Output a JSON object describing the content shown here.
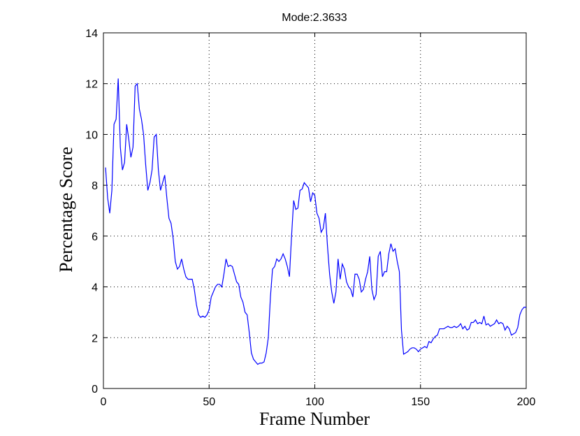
{
  "chart_data": {
    "type": "line",
    "title": "Mode:2.3633",
    "x_label": "Frame Number",
    "y_label": "Percentage Score",
    "x": [
      1,
      2,
      3,
      4,
      5,
      6,
      7,
      8,
      9,
      10,
      11,
      12,
      13,
      14,
      15,
      16,
      17,
      18,
      19,
      20,
      21,
      22,
      23,
      24,
      25,
      26,
      27,
      28,
      29,
      30,
      31,
      32,
      33,
      34,
      35,
      36,
      37,
      38,
      39,
      40,
      41,
      42,
      43,
      44,
      45,
      46,
      47,
      48,
      49,
      50,
      51,
      52,
      53,
      54,
      55,
      56,
      57,
      58,
      59,
      60,
      61,
      62,
      63,
      64,
      65,
      66,
      67,
      68,
      69,
      70,
      71,
      72,
      73,
      74,
      75,
      76,
      77,
      78,
      79,
      80,
      81,
      82,
      83,
      84,
      85,
      86,
      87,
      88,
      89,
      90,
      91,
      92,
      93,
      94,
      95,
      96,
      97,
      98,
      99,
      100,
      101,
      102,
      103,
      104,
      105,
      106,
      107,
      108,
      109,
      110,
      111,
      112,
      113,
      114,
      115,
      116,
      117,
      118,
      119,
      120,
      121,
      122,
      123,
      124,
      125,
      126,
      127,
      128,
      129,
      130,
      131,
      132,
      133,
      134,
      135,
      136,
      137,
      138,
      139,
      140,
      141,
      142,
      143,
      144,
      145,
      146,
      147,
      148,
      149,
      150,
      151,
      152,
      153,
      154,
      155,
      156,
      157,
      158,
      159,
      160,
      161,
      162,
      163,
      164,
      165,
      166,
      167,
      168,
      169,
      170,
      171,
      172,
      173,
      174,
      175,
      176,
      177,
      178,
      179,
      180,
      181,
      182,
      183,
      184,
      185,
      186,
      187,
      188,
      189,
      190,
      191,
      192,
      193,
      194,
      195,
      196,
      197,
      198,
      199,
      200
    ],
    "values": [
      8.7,
      7.5,
      6.9,
      7.8,
      10.4,
      10.6,
      12.2,
      9.5,
      8.6,
      8.9,
      10.4,
      9.8,
      9.1,
      9.5,
      11.9,
      12.0,
      11.0,
      10.6,
      10.0,
      8.8,
      7.8,
      8.1,
      8.6,
      9.9,
      10.0,
      8.6,
      7.8,
      8.1,
      8.4,
      7.5,
      6.7,
      6.5,
      5.9,
      5.0,
      4.7,
      4.8,
      5.1,
      4.7,
      4.4,
      4.3,
      4.3,
      4.3,
      3.9,
      3.3,
      2.9,
      2.8,
      2.85,
      2.8,
      2.9,
      3.1,
      3.6,
      3.8,
      4.0,
      4.1,
      4.1,
      4.0,
      4.5,
      5.1,
      4.8,
      4.85,
      4.8,
      4.5,
      4.2,
      4.1,
      3.6,
      3.4,
      3.0,
      2.9,
      2.2,
      1.4,
      1.15,
      1.05,
      0.95,
      1.0,
      1.0,
      1.05,
      1.4,
      2.0,
      3.6,
      4.7,
      4.8,
      5.1,
      5.0,
      5.1,
      5.3,
      5.1,
      4.8,
      4.4,
      6.0,
      7.4,
      7.05,
      7.1,
      7.8,
      7.85,
      8.1,
      8.0,
      7.9,
      7.35,
      7.7,
      7.6,
      6.9,
      6.7,
      6.15,
      6.3,
      6.9,
      5.6,
      4.5,
      3.8,
      3.35,
      3.8,
      5.1,
      4.3,
      4.9,
      4.7,
      4.2,
      4.0,
      3.9,
      3.6,
      4.5,
      4.5,
      4.3,
      3.8,
      3.9,
      4.3,
      4.6,
      5.2,
      3.9,
      3.5,
      3.7,
      5.2,
      5.4,
      4.4,
      4.6,
      4.6,
      5.3,
      5.7,
      5.4,
      5.5,
      5.0,
      4.6,
      2.3,
      1.35,
      1.4,
      1.45,
      1.55,
      1.6,
      1.6,
      1.55,
      1.45,
      1.55,
      1.6,
      1.65,
      1.6,
      1.85,
      1.8,
      1.95,
      2.05,
      2.1,
      2.35,
      2.35,
      2.35,
      2.4,
      2.45,
      2.4,
      2.4,
      2.45,
      2.4,
      2.45,
      2.55,
      2.35,
      2.45,
      2.3,
      2.35,
      2.6,
      2.6,
      2.7,
      2.55,
      2.6,
      2.55,
      2.85,
      2.5,
      2.55,
      2.45,
      2.5,
      2.55,
      2.7,
      2.55,
      2.6,
      2.55,
      2.3,
      2.45,
      2.35,
      2.1,
      2.15,
      2.2,
      2.4,
      2.9,
      3.1,
      3.2,
      3.2
    ],
    "color": "#0000ff",
    "xlim": [
      0,
      200
    ],
    "ylim": [
      0,
      14
    ],
    "xticks": [
      0,
      50,
      100,
      150,
      200
    ],
    "yticks": [
      0,
      2,
      4,
      6,
      8,
      10,
      12,
      14
    ],
    "grid": true
  }
}
